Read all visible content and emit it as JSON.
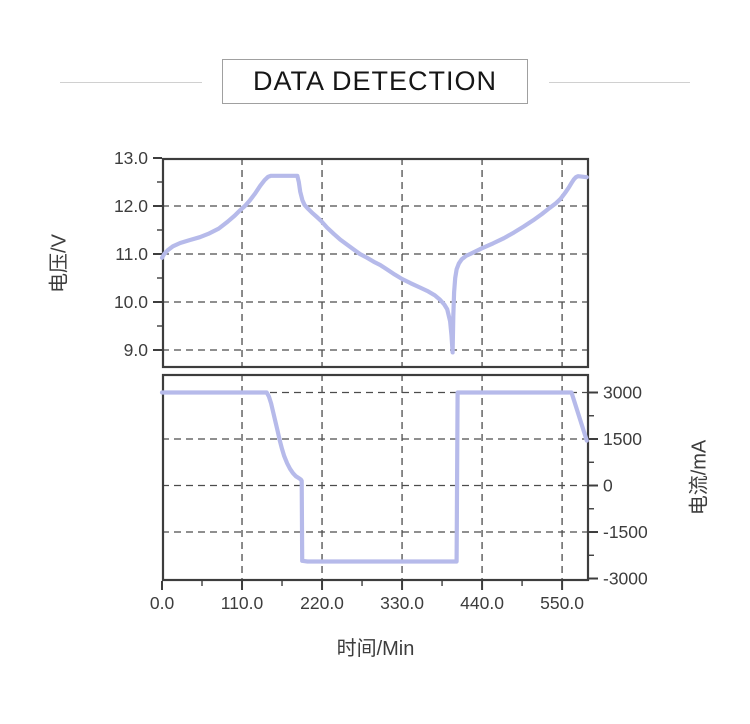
{
  "header": {
    "title": "DATA DETECTION"
  },
  "colors": {
    "series": "#b6baea",
    "axis": "#3d3d3d",
    "grid": "#4c4c4c",
    "title_border": "#a0a0a0",
    "deco_line": "#d0d0d0"
  },
  "chart_data": [
    {
      "id": "voltage",
      "type": "line",
      "ylabel": "电压/V",
      "tick_side": "left",
      "xlim": [
        0,
        587
      ],
      "ylim": [
        8.625,
        13.0
      ],
      "yticks_major": [
        9.0,
        10.0,
        11.0,
        12.0,
        13.0
      ],
      "ytick_labels": [
        "9.0",
        "10.0",
        "11.0",
        "12.0",
        "13.0"
      ],
      "yticks_minor": [
        9.5,
        10.5,
        11.5,
        12.5
      ],
      "grid_x": [
        110,
        220,
        330,
        440,
        550
      ],
      "grid_y": [
        9.0,
        10.0,
        11.0,
        12.0
      ],
      "points": [
        [
          0,
          10.92
        ],
        [
          3,
          11.0
        ],
        [
          8,
          11.08
        ],
        [
          15,
          11.16
        ],
        [
          25,
          11.23
        ],
        [
          38,
          11.29
        ],
        [
          52,
          11.35
        ],
        [
          65,
          11.43
        ],
        [
          78,
          11.53
        ],
        [
          90,
          11.67
        ],
        [
          100,
          11.8
        ],
        [
          108,
          11.92
        ],
        [
          114,
          12.0
        ],
        [
          121,
          12.12
        ],
        [
          128,
          12.26
        ],
        [
          135,
          12.42
        ],
        [
          141,
          12.54
        ],
        [
          146,
          12.61
        ],
        [
          150,
          12.63
        ],
        [
          186,
          12.63
        ],
        [
          188,
          12.5
        ],
        [
          190,
          12.3
        ],
        [
          193,
          12.12
        ],
        [
          196,
          12.02
        ],
        [
          201,
          11.94
        ],
        [
          207,
          11.85
        ],
        [
          213,
          11.77
        ],
        [
          218,
          11.7
        ],
        [
          227,
          11.55
        ],
        [
          236,
          11.42
        ],
        [
          245,
          11.3
        ],
        [
          254,
          11.2
        ],
        [
          263,
          11.1
        ],
        [
          272,
          11.0
        ],
        [
          282,
          10.92
        ],
        [
          291,
          10.84
        ],
        [
          300,
          10.77
        ],
        [
          310,
          10.67
        ],
        [
          320,
          10.57
        ],
        [
          330,
          10.48
        ],
        [
          342,
          10.39
        ],
        [
          355,
          10.3
        ],
        [
          366,
          10.22
        ],
        [
          375,
          10.14
        ],
        [
          382,
          10.05
        ],
        [
          388,
          9.95
        ],
        [
          392,
          9.85
        ],
        [
          396,
          9.6
        ],
        [
          398,
          9.3
        ],
        [
          399.5,
          8.95
        ],
        [
          400.5,
          9.7
        ],
        [
          401.5,
          10.2
        ],
        [
          403,
          10.5
        ],
        [
          405,
          10.68
        ],
        [
          408,
          10.8
        ],
        [
          412,
          10.89
        ],
        [
          418,
          10.96
        ],
        [
          425,
          11.01
        ],
        [
          440,
          11.12
        ],
        [
          455,
          11.22
        ],
        [
          470,
          11.33
        ],
        [
          484,
          11.45
        ],
        [
          497,
          11.57
        ],
        [
          510,
          11.7
        ],
        [
          522,
          11.83
        ],
        [
          533,
          11.96
        ],
        [
          541,
          12.05
        ],
        [
          548,
          12.15
        ],
        [
          554,
          12.27
        ],
        [
          559,
          12.38
        ],
        [
          563,
          12.48
        ],
        [
          566,
          12.55
        ],
        [
          569,
          12.6
        ],
        [
          572,
          12.62
        ],
        [
          584,
          12.6
        ]
      ]
    },
    {
      "id": "current",
      "type": "line",
      "ylabel": "电流/mA",
      "xlabel": "时间/Min",
      "tick_side": "right",
      "xlim": [
        0,
        587
      ],
      "ylim": [
        -3080,
        3597
      ],
      "yticks_major": [
        -3000,
        -1500,
        0,
        1500,
        3000
      ],
      "ytick_labels": [
        "-3000",
        "-1500",
        "0",
        "1500",
        "3000"
      ],
      "yticks_minor": [
        -2250,
        -750,
        750,
        2250
      ],
      "xticks_major": [
        0,
        110,
        220,
        330,
        440,
        550
      ],
      "xtick_labels": [
        "0.0",
        "110.0",
        "220.0",
        "330.0",
        "440.0",
        "550.0"
      ],
      "xticks_minor": [
        55,
        165,
        275,
        385,
        495
      ],
      "grid_x": [
        110,
        220,
        330,
        440,
        550
      ],
      "grid_y": [
        -1500,
        0,
        1500,
        3000
      ],
      "points": [
        [
          0,
          3000
        ],
        [
          144,
          3000
        ],
        [
          147,
          2870
        ],
        [
          150,
          2650
        ],
        [
          153,
          2350
        ],
        [
          156,
          2050
        ],
        [
          159,
          1750
        ],
        [
          162,
          1450
        ],
        [
          165,
          1180
        ],
        [
          168,
          950
        ],
        [
          172,
          720
        ],
        [
          176,
          540
        ],
        [
          180,
          400
        ],
        [
          184,
          300
        ],
        [
          188,
          240
        ],
        [
          191,
          190
        ],
        [
          192,
          150
        ],
        [
          192.8,
          -2430
        ],
        [
          200,
          -2450
        ],
        [
          405,
          -2450
        ],
        [
          406.3,
          3000
        ],
        [
          563,
          3000
        ],
        [
          584,
          1450
        ]
      ]
    }
  ]
}
